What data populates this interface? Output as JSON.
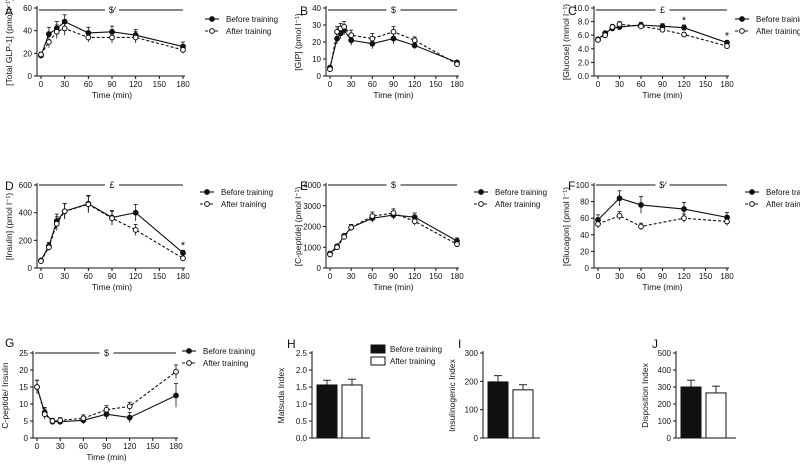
{
  "legend": {
    "before": "Before training",
    "after": "After training"
  },
  "chart_data": [
    {
      "id": "A",
      "type": "line",
      "letter": "A",
      "ylabel": "[Total GLP-1] (pmol l⁻¹)",
      "xlabel": "Time (min)",
      "ylim": [
        0,
        60
      ],
      "yticks": [
        0,
        20,
        40,
        60
      ],
      "xticks": [
        0,
        30,
        60,
        90,
        120,
        150,
        180
      ],
      "x": [
        0,
        10,
        20,
        30,
        60,
        90,
        120,
        180
      ],
      "series": [
        {
          "name": "Before training",
          "values": [
            18,
            37,
            42,
            48,
            38,
            39,
            36,
            26
          ],
          "err": [
            2,
            6,
            6,
            6,
            5,
            5,
            5,
            4
          ]
        },
        {
          "name": "After training",
          "values": [
            19,
            30,
            39,
            42,
            34,
            34,
            34,
            23
          ],
          "err": [
            2,
            5,
            6,
            6,
            4,
            5,
            5,
            3
          ]
        }
      ],
      "sig": "$⁄",
      "stars": []
    },
    {
      "id": "B",
      "type": "line",
      "letter": "B",
      "ylabel": "[GIP] (pmol l⁻¹)",
      "xlabel": "Time (min)",
      "ylim": [
        0,
        40
      ],
      "yticks": [
        0,
        10,
        20,
        30,
        40
      ],
      "xticks": [
        0,
        30,
        60,
        90,
        120,
        150,
        180
      ],
      "x": [
        0,
        10,
        15,
        20,
        30,
        60,
        90,
        120,
        180
      ],
      "series": [
        {
          "name": "Before training",
          "values": [
            5,
            22,
            25,
            27,
            21,
            19,
            22,
            18,
            8
          ],
          "err": [
            1,
            3,
            3,
            3,
            3,
            3,
            3,
            2,
            1
          ]
        },
        {
          "name": "After training",
          "values": [
            4,
            26,
            28,
            29,
            24,
            22,
            26,
            21,
            7
          ],
          "err": [
            1,
            3,
            3,
            3,
            3,
            3,
            3,
            2,
            1
          ]
        }
      ],
      "sig": "$",
      "stars": []
    },
    {
      "id": "C",
      "type": "line",
      "letter": "C",
      "ylabel": "[Glucose] (mmol l⁻¹)",
      "xlabel": "Time (min)",
      "ylim": [
        0,
        10
      ],
      "yticks": [
        0.0,
        2.0,
        4.0,
        6.0,
        8.0,
        10.0
      ],
      "ytick_labels": [
        "0.0",
        "2.0",
        "4.0",
        "6.0",
        "8.0",
        "10.0"
      ],
      "xticks": [
        0,
        30,
        60,
        90,
        120,
        150,
        180
      ],
      "x": [
        0,
        10,
        20,
        30,
        60,
        90,
        120,
        180
      ],
      "series": [
        {
          "name": "Before training",
          "values": [
            5.4,
            6.3,
            7.0,
            7.2,
            7.5,
            7.3,
            7.1,
            4.9
          ],
          "err": [
            0.2,
            0.3,
            0.4,
            0.4,
            0.4,
            0.4,
            0.4,
            0.3
          ]
        },
        {
          "name": "After training",
          "values": [
            5.3,
            6.0,
            7.2,
            7.6,
            7.3,
            6.8,
            6.1,
            4.4
          ],
          "err": [
            0.2,
            0.3,
            0.4,
            0.4,
            0.4,
            0.4,
            0.3,
            0.3
          ]
        }
      ],
      "sig": "£",
      "stars": [
        {
          "x": 120,
          "y": 8.1
        },
        {
          "x": 180,
          "y": 5.8
        }
      ]
    },
    {
      "id": "D",
      "type": "line",
      "letter": "D",
      "ylabel": "[Insulin] (pmol l⁻¹)",
      "xlabel": "Time (min)",
      "ylim": [
        0,
        600
      ],
      "yticks": [
        0,
        200,
        400,
        600
      ],
      "xticks": [
        0,
        30,
        60,
        90,
        120,
        150,
        180
      ],
      "x": [
        0,
        10,
        20,
        30,
        60,
        90,
        120,
        180
      ],
      "series": [
        {
          "name": "Before training",
          "values": [
            55,
            160,
            340,
            410,
            465,
            365,
            400,
            110
          ],
          "err": [
            8,
            25,
            50,
            55,
            60,
            50,
            60,
            18
          ]
        },
        {
          "name": "After training",
          "values": [
            50,
            150,
            320,
            410,
            460,
            360,
            275,
            70
          ],
          "err": [
            8,
            25,
            50,
            55,
            60,
            50,
            40,
            12
          ]
        }
      ],
      "sig": "£",
      "stars": [
        {
          "x": 180,
          "y": 160
        }
      ]
    },
    {
      "id": "E",
      "type": "line",
      "letter": "E",
      "ylabel": "[C-peptide] (pmol l⁻¹)",
      "xlabel": "Time (min)",
      "ylim": [
        0,
        4000
      ],
      "yticks": [
        0,
        1000,
        2000,
        3000,
        4000
      ],
      "xticks": [
        0,
        30,
        60,
        90,
        120,
        150,
        180
      ],
      "x": [
        0,
        10,
        20,
        30,
        60,
        90,
        120,
        180
      ],
      "series": [
        {
          "name": "Before training",
          "values": [
            700,
            1050,
            1550,
            1950,
            2400,
            2550,
            2450,
            1300
          ],
          "err": [
            50,
            80,
            100,
            150,
            200,
            200,
            200,
            150
          ]
        },
        {
          "name": "After training",
          "values": [
            650,
            1000,
            1500,
            1950,
            2500,
            2650,
            2250,
            1150
          ],
          "err": [
            50,
            80,
            100,
            150,
            200,
            200,
            200,
            130
          ]
        }
      ],
      "sig": "$",
      "stars": []
    },
    {
      "id": "F",
      "type": "line",
      "letter": "F",
      "ylabel": "[Glucagon] (pmol l⁻¹)",
      "xlabel": "Time (min)",
      "ylim": [
        0,
        100
      ],
      "yticks": [
        0,
        20,
        40,
        60,
        80,
        100
      ],
      "xticks": [
        0,
        30,
        60,
        90,
        120,
        150,
        180
      ],
      "x": [
        0,
        30,
        60,
        120,
        180
      ],
      "series": [
        {
          "name": "Before training",
          "values": [
            58,
            84,
            76,
            71,
            61
          ],
          "err": [
            6,
            9,
            10,
            8,
            6
          ]
        },
        {
          "name": "After training",
          "values": [
            53,
            63,
            50,
            60,
            56
          ],
          "err": [
            5,
            5,
            4,
            5,
            5
          ]
        }
      ],
      "sig": "$⁄",
      "stars": []
    },
    {
      "id": "G",
      "type": "line",
      "letter": "G",
      "ylabel": "C-peptide/ Insulin",
      "xlabel": "Time (min)",
      "ylim": [
        0,
        25
      ],
      "yticks": [
        0,
        5,
        10,
        15,
        20,
        25
      ],
      "xticks": [
        0,
        30,
        60,
        90,
        120,
        150,
        180
      ],
      "x": [
        0,
        10,
        20,
        30,
        60,
        90,
        120,
        180
      ],
      "series": [
        {
          "name": "Before training",
          "values": [
            15,
            7.5,
            4.8,
            4.8,
            5.2,
            7.0,
            6.0,
            12.5
          ],
          "err": [
            2,
            1.5,
            0.8,
            0.8,
            1,
            1.5,
            1.5,
            3.5
          ]
        },
        {
          "name": "After training",
          "values": [
            15,
            7.0,
            5.0,
            5.2,
            5.8,
            8.3,
            9.3,
            19.5
          ],
          "err": [
            2,
            1.5,
            0.8,
            0.8,
            1,
            1.2,
            1.2,
            2
          ]
        }
      ],
      "sig": "$",
      "stars": []
    },
    {
      "id": "H",
      "type": "bar",
      "letter": "H",
      "ylabel": "Matsuda Index",
      "ylim": [
        0,
        2.5
      ],
      "yticks": [
        0.0,
        0.5,
        1.0,
        1.5,
        2.0,
        2.5
      ],
      "ytick_labels": [
        "0.0",
        "0.5",
        "1.0",
        "1.5",
        "2.0",
        "2.5"
      ],
      "categories": [
        "Before training",
        "After training"
      ],
      "values": [
        1.56,
        1.56
      ],
      "err": [
        0.14,
        0.17
      ]
    },
    {
      "id": "I",
      "type": "bar",
      "letter": "I",
      "ylabel": "Insulinogenic Index",
      "ylim": [
        0,
        300
      ],
      "yticks": [
        0,
        100,
        200,
        300
      ],
      "categories": [
        "Before training",
        "After training"
      ],
      "values": [
        198,
        170
      ],
      "err": [
        22,
        18
      ]
    },
    {
      "id": "J",
      "type": "bar",
      "letter": "J",
      "ylabel": "Disposition Index",
      "ylim": [
        0,
        500
      ],
      "yticks": [
        0,
        100,
        200,
        300,
        400,
        500
      ],
      "categories": [
        "Before training",
        "After training"
      ],
      "values": [
        300,
        265
      ],
      "err": [
        40,
        40
      ]
    }
  ]
}
